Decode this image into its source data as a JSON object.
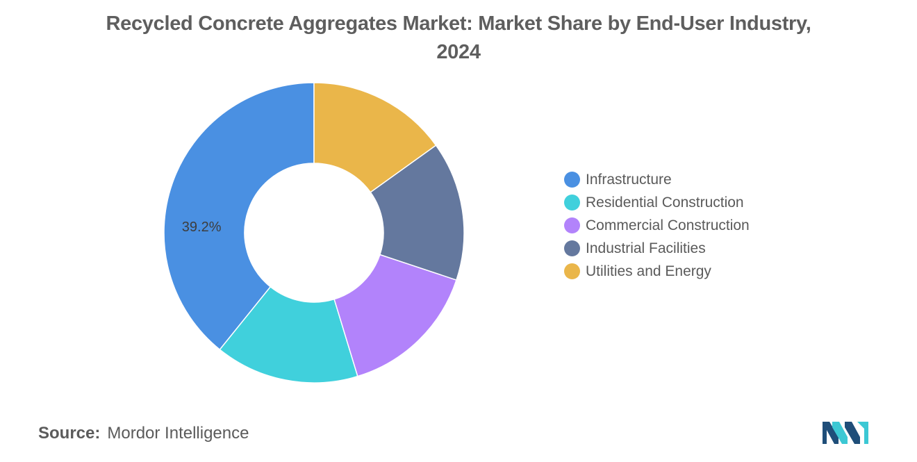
{
  "title": "Recycled Concrete Aggregates Market: Market Share by End-User Industry, 2024",
  "chart_data": {
    "type": "pie",
    "donut": true,
    "legend_position": "right",
    "categories": [
      "Infrastructure",
      "Residential Construction",
      "Commercial Construction",
      "Industrial Facilities",
      "Utilities and Energy"
    ],
    "values": [
      39.2,
      15.5,
      15.2,
      15.0,
      15.1
    ],
    "colors": [
      "#4a90e2",
      "#40d0dc",
      "#b283fb",
      "#64789e",
      "#eab64a"
    ],
    "data_labels": [
      "39.2%",
      "",
      "",
      "",
      ""
    ]
  },
  "source": {
    "label": "Source:",
    "text": "Mordor Intelligence"
  },
  "logo": {
    "icon": "mordor-intelligence-logo",
    "colors": [
      "#1f4e79",
      "#3cc8d4"
    ]
  }
}
